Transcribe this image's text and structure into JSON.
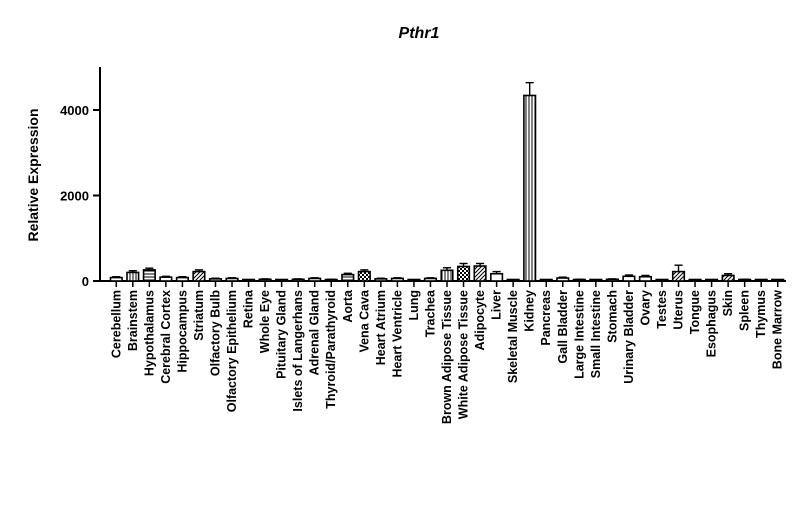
{
  "chart_data": {
    "type": "bar",
    "title": "Pthr1",
    "xlabel": "",
    "ylabel": "Relative Expression",
    "ylim": [
      0,
      5000
    ],
    "yticks": [
      0,
      2000,
      4000
    ],
    "ytick_labels": [
      "0",
      "2000",
      "4000"
    ],
    "grid": false,
    "categories": [
      "Cerebellum",
      "Brainstem",
      "Hypothalamus",
      "Cerebral Cortex",
      "Hippocampus",
      "Striatum",
      "Olfactory Bulb",
      "Olfactory Epithelium",
      "Retina",
      "Whole Eye",
      "Pituitary Gland",
      "Islets of Langerhans",
      "Adrenal Gland",
      "Thyroid/Parathyroid",
      "Aorta",
      "Vena Cava",
      "Heart Atrium",
      "Heart Ventricle",
      "Lung",
      "Trachea",
      "Brown Adipose Tissue",
      "White Adipose Tissue",
      "Adipocyte",
      "Liver",
      "Skeletal Muscle",
      "Kidney",
      "Pancreas",
      "Gall Bladder",
      "Large Intestine",
      "Small Intestine",
      "Stomach",
      "Urinary Bladder",
      "Ovary",
      "Testes",
      "Uterus",
      "Tongue",
      "Esophagus",
      "Skin",
      "Spleen",
      "Thymus",
      "Bone Marrow"
    ],
    "values": [
      80,
      200,
      260,
      90,
      80,
      220,
      50,
      60,
      15,
      40,
      10,
      40,
      60,
      30,
      150,
      220,
      50,
      60,
      20,
      60,
      250,
      340,
      350,
      170,
      20,
      4340,
      10,
      70,
      30,
      20,
      40,
      110,
      100,
      20,
      220,
      10,
      10,
      130,
      30,
      10,
      20
    ],
    "errors": [
      20,
      40,
      40,
      20,
      20,
      40,
      15,
      15,
      5,
      10,
      5,
      10,
      15,
      10,
      30,
      40,
      15,
      15,
      5,
      15,
      60,
      70,
      60,
      50,
      5,
      300,
      5,
      20,
      10,
      5,
      10,
      30,
      30,
      5,
      150,
      5,
      5,
      40,
      10,
      5,
      5
    ],
    "patterns": [
      "solid",
      "vstripe",
      "hstripe",
      "solid",
      "solid",
      "hatch-ne",
      "solid",
      "solid",
      "solid",
      "solid",
      "solid",
      "solid",
      "solid",
      "solid",
      "hstripe",
      "check",
      "solid",
      "solid",
      "solid",
      "solid",
      "vstripe",
      "check",
      "hatch-ne",
      "solid",
      "solid",
      "vstripe",
      "solid",
      "solid",
      "solid",
      "solid",
      "solid",
      "solid",
      "solid",
      "solid",
      "hatch-ne",
      "solid",
      "solid",
      "hatch-ne",
      "solid",
      "solid",
      "solid"
    ]
  }
}
